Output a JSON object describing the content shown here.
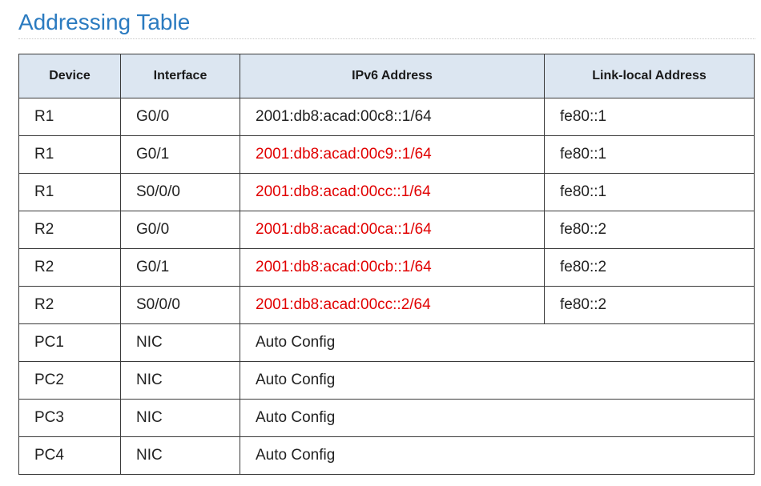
{
  "page": {
    "title": "Addressing Table"
  },
  "colors": {
    "title": "#2b7bc0",
    "header_bg": "#dce6f1",
    "highlight_text": "#e10000"
  },
  "table": {
    "headers": [
      "Device",
      "Interface",
      "IPv6 Address",
      "Link-local Address"
    ],
    "rows": [
      {
        "device": "R1",
        "interface": "G0/0",
        "ipv6": "2001:db8:acad:00c8::1/64",
        "ipv6_highlighted": false,
        "link_local": "fe80::1"
      },
      {
        "device": "R1",
        "interface": "G0/1",
        "ipv6": "2001:db8:acad:00c9::1/64",
        "ipv6_highlighted": true,
        "link_local": "fe80::1"
      },
      {
        "device": "R1",
        "interface": "S0/0/0",
        "ipv6": "2001:db8:acad:00cc::1/64",
        "ipv6_highlighted": true,
        "link_local": "fe80::1"
      },
      {
        "device": "R2",
        "interface": "G0/0",
        "ipv6": "2001:db8:acad:00ca::1/64",
        "ipv6_highlighted": true,
        "link_local": "fe80::2"
      },
      {
        "device": "R2",
        "interface": "G0/1",
        "ipv6": "2001:db8:acad:00cb::1/64",
        "ipv6_highlighted": true,
        "link_local": "fe80::2"
      },
      {
        "device": "R2",
        "interface": "S0/0/0",
        "ipv6": "2001:db8:acad:00cc::2/64",
        "ipv6_highlighted": true,
        "link_local": "fe80::2"
      },
      {
        "device": "PC1",
        "interface": "NIC",
        "ipv6": "Auto Config",
        "ipv6_highlighted": false,
        "link_local": null
      },
      {
        "device": "PC2",
        "interface": "NIC",
        "ipv6": "Auto Config",
        "ipv6_highlighted": false,
        "link_local": null
      },
      {
        "device": "PC3",
        "interface": "NIC",
        "ipv6": "Auto Config",
        "ipv6_highlighted": false,
        "link_local": null
      },
      {
        "device": "PC4",
        "interface": "NIC",
        "ipv6": "Auto Config",
        "ipv6_highlighted": false,
        "link_local": null
      }
    ]
  }
}
